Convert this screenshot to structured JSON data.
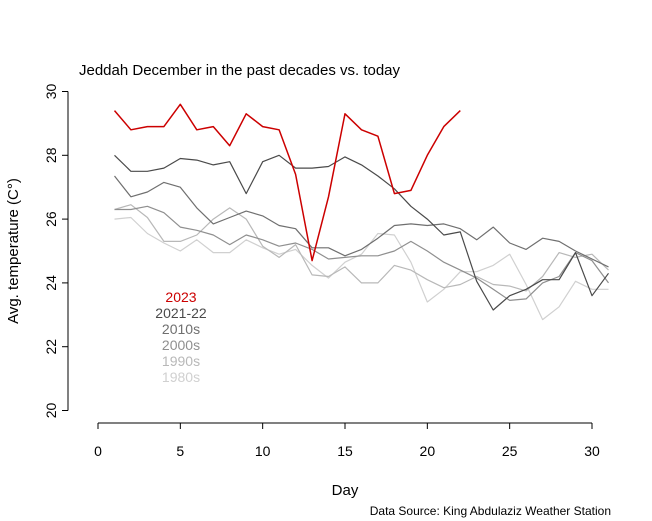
{
  "chart_data": {
    "type": "line",
    "title": "Jeddah December in the past decades vs. today",
    "xlabel": "Day",
    "ylabel": "Avg. temperature (C°)",
    "source": "Data Source: King Abdulaziz Weather Station",
    "xlim": [
      0,
      31
    ],
    "ylim": [
      20,
      30
    ],
    "x_ticks": [
      0,
      5,
      10,
      15,
      20,
      25,
      30
    ],
    "y_ticks": [
      20,
      22,
      24,
      26,
      28,
      30
    ],
    "legend_position": "bottom-left",
    "series": [
      {
        "name": "1980s",
        "color": "#d0d0d0",
        "x": [
          1,
          2,
          3,
          4,
          5,
          6,
          7,
          8,
          9,
          10,
          11,
          12,
          13,
          14,
          15,
          16,
          17,
          18,
          19,
          20,
          21,
          22,
          23,
          24,
          25,
          26,
          27,
          28,
          29,
          30,
          31
        ],
        "y": [
          26.0,
          26.05,
          25.55,
          25.25,
          25.0,
          25.35,
          24.95,
          24.95,
          25.35,
          25.1,
          24.9,
          25.05,
          24.55,
          24.15,
          24.65,
          24.9,
          25.55,
          25.5,
          24.65,
          23.4,
          23.8,
          24.35,
          24.35,
          24.55,
          24.9,
          23.95,
          22.85,
          23.25,
          24.05,
          23.8,
          23.8
        ]
      },
      {
        "name": "1990s",
        "color": "#b8b8b8",
        "x": [
          1,
          2,
          3,
          4,
          5,
          6,
          7,
          8,
          9,
          10,
          11,
          12,
          13,
          14,
          15,
          16,
          17,
          18,
          19,
          20,
          21,
          22,
          23,
          24,
          25,
          26,
          27,
          28,
          29,
          30,
          31
        ],
        "y": [
          26.3,
          26.45,
          26.05,
          25.3,
          25.3,
          25.5,
          26.0,
          26.35,
          26.0,
          25.15,
          24.8,
          25.2,
          24.25,
          24.2,
          24.5,
          24.0,
          24.0,
          24.55,
          24.4,
          24.1,
          23.85,
          23.95,
          24.2,
          23.95,
          23.9,
          23.75,
          24.2,
          24.95,
          24.8,
          24.9,
          24.4
        ]
      },
      {
        "name": "2000s",
        "color": "#8f8f8f",
        "x": [
          1,
          2,
          3,
          4,
          5,
          6,
          7,
          8,
          9,
          10,
          11,
          12,
          13,
          14,
          15,
          16,
          17,
          18,
          19,
          20,
          21,
          22,
          23,
          24,
          25,
          26,
          27,
          28,
          29,
          30,
          31
        ],
        "y": [
          26.3,
          26.3,
          26.4,
          26.2,
          25.75,
          25.65,
          25.5,
          25.2,
          25.5,
          25.35,
          25.15,
          25.25,
          25.05,
          24.75,
          24.8,
          24.85,
          24.85,
          25.0,
          25.3,
          25.0,
          24.65,
          24.4,
          24.15,
          23.8,
          23.45,
          23.5,
          24.0,
          24.2,
          24.95,
          24.7,
          24.0
        ]
      },
      {
        "name": "2010s",
        "color": "#6f6f6f",
        "x": [
          1,
          2,
          3,
          4,
          5,
          6,
          7,
          8,
          9,
          10,
          11,
          12,
          13,
          14,
          15,
          16,
          17,
          18,
          19,
          20,
          21,
          22,
          23,
          24,
          25,
          26,
          27,
          28,
          29,
          30,
          31
        ],
        "y": [
          27.35,
          26.7,
          26.85,
          27.15,
          27.0,
          26.35,
          25.85,
          26.05,
          26.25,
          26.1,
          25.8,
          25.7,
          25.1,
          25.1,
          24.85,
          25.05,
          25.4,
          25.8,
          25.85,
          25.8,
          25.85,
          25.7,
          25.35,
          25.75,
          25.25,
          25.05,
          25.4,
          25.3,
          25.0,
          24.75,
          24.5
        ]
      },
      {
        "name": "2021-22",
        "color": "#4a4a4a",
        "x": [
          1,
          2,
          3,
          4,
          5,
          6,
          7,
          8,
          9,
          10,
          11,
          12,
          13,
          14,
          15,
          16,
          17,
          18,
          19,
          20,
          21,
          22,
          23,
          24,
          25,
          26,
          27,
          28,
          29,
          30,
          31
        ],
        "y": [
          28.0,
          27.5,
          27.5,
          27.6,
          27.9,
          27.85,
          27.7,
          27.8,
          26.8,
          27.8,
          28.0,
          27.6,
          27.6,
          27.65,
          27.95,
          27.7,
          27.35,
          26.95,
          26.4,
          26.0,
          25.5,
          25.6,
          24.05,
          23.15,
          23.6,
          23.8,
          24.1,
          24.1,
          24.95,
          23.6,
          24.3
        ]
      },
      {
        "name": "2023",
        "color": "#cc0000",
        "x": [
          1,
          2,
          3,
          4,
          5,
          6,
          7,
          8,
          9,
          10,
          11,
          12,
          13,
          14,
          15,
          16,
          17,
          18,
          19,
          20,
          21,
          22
        ],
        "y": [
          29.4,
          28.8,
          28.9,
          28.9,
          29.6,
          28.8,
          28.9,
          28.3,
          29.3,
          28.9,
          28.8,
          27.4,
          24.7,
          26.7,
          29.3,
          28.8,
          28.6,
          26.8,
          26.9,
          28.0,
          28.9,
          29.4
        ]
      }
    ]
  }
}
